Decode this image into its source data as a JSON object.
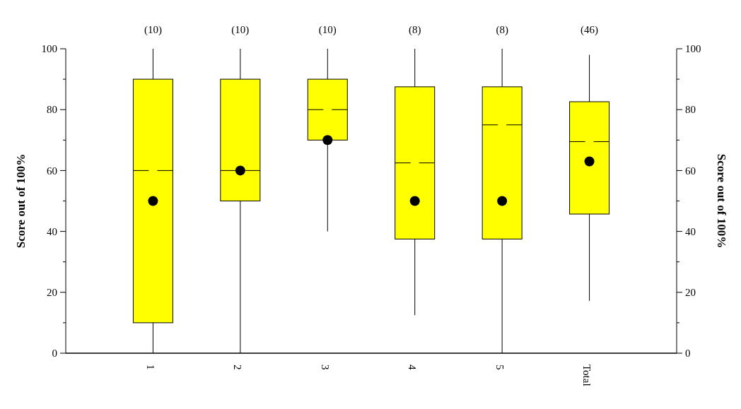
{
  "chart_data": {
    "type": "box",
    "categories": [
      "1",
      "2",
      "3",
      "4",
      "5",
      "Total"
    ],
    "boxes": [
      {
        "low": 0,
        "q1": 10,
        "median": 60,
        "q3": 90,
        "high": 100,
        "mean": 50
      },
      {
        "low": 0,
        "q1": 50,
        "median": 60,
        "q3": 90,
        "high": 100,
        "mean": 60
      },
      {
        "low": 40,
        "q1": 70,
        "median": 80,
        "q3": 90,
        "high": 100,
        "mean": 70
      },
      {
        "low": 12.5,
        "q1": 37.5,
        "median": 62.5,
        "q3": 87.5,
        "high": 100,
        "mean": 50
      },
      {
        "low": 0,
        "q1": 37.5,
        "median": 75,
        "q3": 87.5,
        "high": 100,
        "mean": 50
      },
      {
        "low": 17.2,
        "q1": 45.7,
        "median": 69.5,
        "q3": 82.6,
        "high": 98,
        "mean": 63
      }
    ],
    "color": "#ffff00",
    "ylabel": "Score out of 100%",
    "y2label": "Score out of 100%",
    "ylim": [
      0,
      100
    ],
    "yticks": [
      0,
      {
        "value": 10,
        "label": null
      },
      20,
      {
        "value": 30,
        "label": null
      },
      40,
      {
        "value": 50,
        "label": null
      },
      60,
      {
        "value": 70,
        "label": null
      },
      80,
      {
        "value": 90,
        "label": null
      },
      100
    ],
    "y2lim": [
      0,
      100
    ],
    "y2ticks": [
      0,
      {
        "value": 10,
        "label": null
      },
      20,
      {
        "value": 30,
        "label": null
      },
      40,
      {
        "value": 50,
        "label": null
      },
      60,
      {
        "value": 70,
        "label": null
      },
      80,
      {
        "value": 90,
        "label": null
      },
      100
    ],
    "annotations": [
      "(10)",
      "(10)",
      "(10)",
      "(8)",
      "(8)",
      "(46)"
    ]
  }
}
